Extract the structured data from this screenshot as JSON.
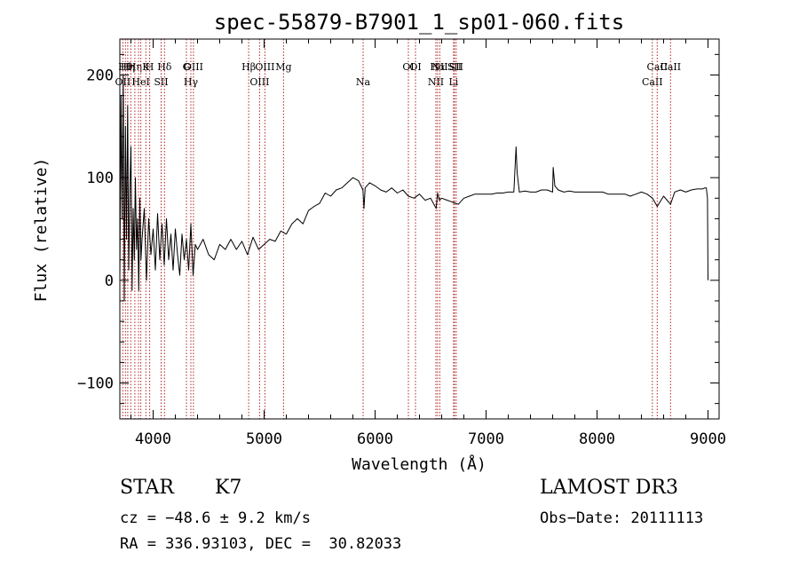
{
  "chart_data": {
    "type": "line",
    "title": "spec-55879-B7901_1_sp01-060.fits",
    "xlabel": "Wavelength (Å)",
    "ylabel": "Flux (relative)",
    "xlim": [
      3700,
      9100
    ],
    "ylim": [
      -135,
      235
    ],
    "xticks": [
      {
        "value": 4000,
        "label": "4000"
      },
      {
        "value": 5000,
        "label": "5000"
      },
      {
        "value": 6000,
        "label": "6000"
      },
      {
        "value": 7000,
        "label": "7000"
      },
      {
        "value": 8000,
        "label": "8000"
      },
      {
        "value": 9000,
        "label": "9000"
      }
    ],
    "yticks": [
      {
        "value": -100,
        "label": "−100"
      },
      {
        "value": 0,
        "label": "0"
      },
      {
        "value": 100,
        "label": "100"
      },
      {
        "value": 200,
        "label": "200"
      }
    ],
    "line_color": "#000000",
    "marker_color": "#b22222",
    "series": [
      {
        "name": "flux",
        "x": [
          3700,
          3710,
          3720,
          3730,
          3740,
          3750,
          3760,
          3770,
          3780,
          3790,
          3800,
          3810,
          3820,
          3830,
          3840,
          3850,
          3860,
          3870,
          3880,
          3890,
          3900,
          3920,
          3940,
          3960,
          3980,
          4000,
          4020,
          4040,
          4060,
          4080,
          4100,
          4120,
          4140,
          4160,
          4180,
          4200,
          4220,
          4240,
          4260,
          4280,
          4300,
          4320,
          4340,
          4360,
          4380,
          4400,
          4450,
          4500,
          4550,
          4600,
          4650,
          4700,
          4750,
          4800,
          4850,
          4900,
          4950,
          5000,
          5050,
          5100,
          5150,
          5200,
          5250,
          5300,
          5350,
          5400,
          5450,
          5500,
          5550,
          5600,
          5650,
          5700,
          5750,
          5800,
          5850,
          5890,
          5900,
          5910,
          5950,
          6000,
          6050,
          6100,
          6150,
          6200,
          6250,
          6300,
          6350,
          6400,
          6450,
          6500,
          6550,
          6563,
          6580,
          6600,
          6650,
          6700,
          6750,
          6800,
          6850,
          6900,
          6950,
          7000,
          7050,
          7100,
          7150,
          7200,
          7250,
          7270,
          7280,
          7290,
          7300,
          7350,
          7400,
          7450,
          7500,
          7550,
          7600,
          7605,
          7620,
          7650,
          7700,
          7750,
          7800,
          7850,
          7900,
          7950,
          8000,
          8050,
          8100,
          8150,
          8200,
          8250,
          8300,
          8350,
          8400,
          8450,
          8500,
          8542,
          8600,
          8662,
          8700,
          8750,
          8800,
          8850,
          8900,
          8950,
          8970,
          8985,
          8995,
          9000
        ],
        "y": [
          0,
          180,
          60,
          200,
          -20,
          150,
          40,
          170,
          10,
          90,
          130,
          -10,
          70,
          20,
          100,
          30,
          60,
          -10,
          80,
          20,
          40,
          70,
          0,
          60,
          25,
          50,
          10,
          65,
          20,
          55,
          15,
          60,
          20,
          45,
          10,
          50,
          25,
          5,
          45,
          20,
          40,
          10,
          55,
          5,
          35,
          30,
          40,
          25,
          20,
          35,
          30,
          40,
          30,
          38,
          25,
          42,
          30,
          35,
          40,
          38,
          48,
          45,
          55,
          60,
          55,
          68,
          72,
          75,
          85,
          82,
          88,
          90,
          95,
          100,
          97,
          88,
          70,
          90,
          95,
          92,
          88,
          86,
          90,
          85,
          88,
          82,
          80,
          84,
          78,
          80,
          70,
          85,
          78,
          80,
          78,
          76,
          74,
          80,
          82,
          84,
          84,
          84,
          84,
          85,
          85,
          86,
          86,
          130,
          105,
          95,
          86,
          87,
          86,
          86,
          88,
          88,
          86,
          110,
          92,
          88,
          86,
          87,
          86,
          86,
          86,
          86,
          86,
          86,
          84,
          84,
          84,
          84,
          82,
          84,
          86,
          84,
          80,
          72,
          82,
          74,
          86,
          88,
          86,
          88,
          89,
          89,
          90,
          90,
          80,
          0
        ]
      }
    ],
    "line_markers": [
      {
        "wavelength": 3727,
        "label": "OII",
        "row": 2
      },
      {
        "wavelength": 3750,
        "label": "Hθ",
        "row": 1
      },
      {
        "wavelength": 3771,
        "label": "Hη",
        "row": 3
      },
      {
        "wavelength": 3798,
        "label": "",
        "row": 0
      },
      {
        "wavelength": 3835,
        "label": "Hη",
        "row": 3
      },
      {
        "wavelength": 3869,
        "label": "",
        "row": 0
      },
      {
        "wavelength": 3889,
        "label": "HeI",
        "row": 2
      },
      {
        "wavelength": 3934,
        "label": "K",
        "row": 1
      },
      {
        "wavelength": 3969,
        "label": "H",
        "row": 3
      },
      {
        "wavelength": 4072,
        "label": "SII",
        "row": 2
      },
      {
        "wavelength": 4102,
        "label": "Hδ",
        "row": 1
      },
      {
        "wavelength": 4300,
        "label": "G",
        "row": 3
      },
      {
        "wavelength": 4340,
        "label": "Hγ",
        "row": 2
      },
      {
        "wavelength": 4363,
        "label": "OIII",
        "row": 1
      },
      {
        "wavelength": 4861,
        "label": "Hβ",
        "row": 3
      },
      {
        "wavelength": 4959,
        "label": "OIII",
        "row": 2
      },
      {
        "wavelength": 5007,
        "label": "OIII",
        "row": 1
      },
      {
        "wavelength": 5175,
        "label": "Mg",
        "row": 3
      },
      {
        "wavelength": 5892,
        "label": "Na",
        "row": 2
      },
      {
        "wavelength": 6300,
        "label": "OI",
        "row": 1
      },
      {
        "wavelength": 6364,
        "label": "OI",
        "row": 3
      },
      {
        "wavelength": 6548,
        "label": "NII",
        "row": 2
      },
      {
        "wavelength": 6563,
        "label": "Hα",
        "row": 1
      },
      {
        "wavelength": 6583,
        "label": "NII",
        "row": 3
      },
      {
        "wavelength": 6707,
        "label": "Li",
        "row": 2
      },
      {
        "wavelength": 6716,
        "label": "SII",
        "row": 1
      },
      {
        "wavelength": 6731,
        "label": "SII",
        "row": 3
      },
      {
        "wavelength": 8498,
        "label": "CaII",
        "row": 2
      },
      {
        "wavelength": 8542,
        "label": "CaII",
        "row": 1
      },
      {
        "wavelength": 8662,
        "label": "CaII",
        "row": 3
      }
    ]
  },
  "info": {
    "class_label": "STAR",
    "subclass": "K7",
    "survey": "LAMOST DR3",
    "redshift": "cz = −48.6 ± 9.2 km/s",
    "obs_date": "Obs−Date: 20111113",
    "coords": "RA = 336.93103, DEC =  30.82033"
  }
}
